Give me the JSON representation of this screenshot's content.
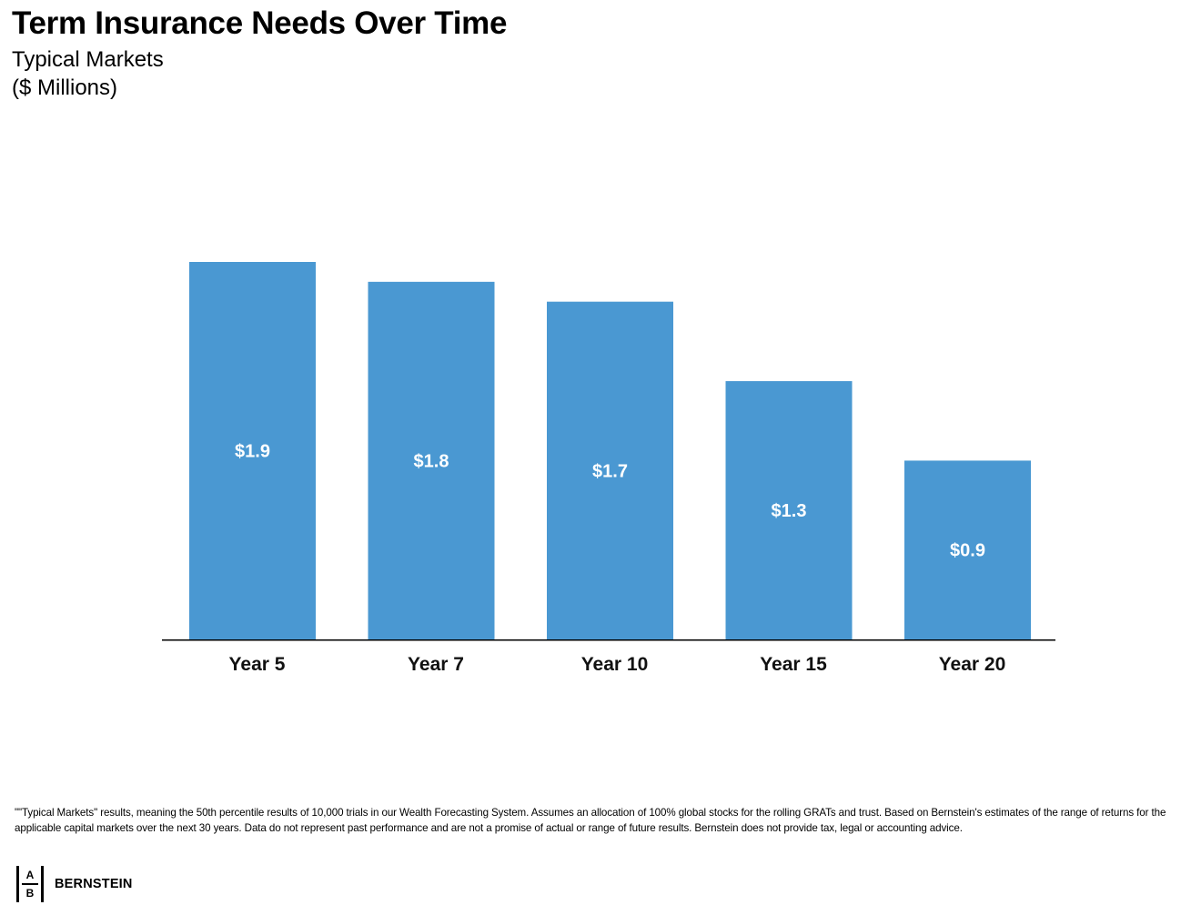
{
  "header": {
    "title": "Term Insurance Needs Over Time",
    "subtitle_line1": "Typical Markets",
    "subtitle_line2": "($ Millions)"
  },
  "chart_data": {
    "type": "bar",
    "title": "Term Insurance Needs Over Time",
    "subtitle": "Typical Markets ($ Millions)",
    "xlabel": "",
    "ylabel": "",
    "categories": [
      "Year 5",
      "Year 7",
      "Year 10",
      "Year 15",
      "Year 20"
    ],
    "values": [
      1.9,
      1.8,
      1.7,
      1.3,
      0.9
    ],
    "data_labels": [
      "$1.9",
      "$1.8",
      "$1.7",
      "$1.3",
      "$0.9"
    ],
    "ylim": [
      0,
      1.9
    ],
    "grid": false,
    "legend": "none",
    "bar_color": "#4a98d2",
    "label_color": "#ffffff"
  },
  "footnote": {
    "text": "\"\"Typical Markets\" results, meaning the 50th percentile results of 10,000 trials in our Wealth Forecasting System. Assumes an allocation of 100% global stocks for the rolling GRATs and trust. Based on Bernstein's estimates of the range of returns for the applicable capital markets over the next 30 years. Data do not represent past performance and are not a promise of actual or range of future results. Bernstein does not provide tax, legal or accounting advice."
  },
  "logo": {
    "mark_top": "A",
    "mark_bottom": "B",
    "text": "BERNSTEIN"
  }
}
